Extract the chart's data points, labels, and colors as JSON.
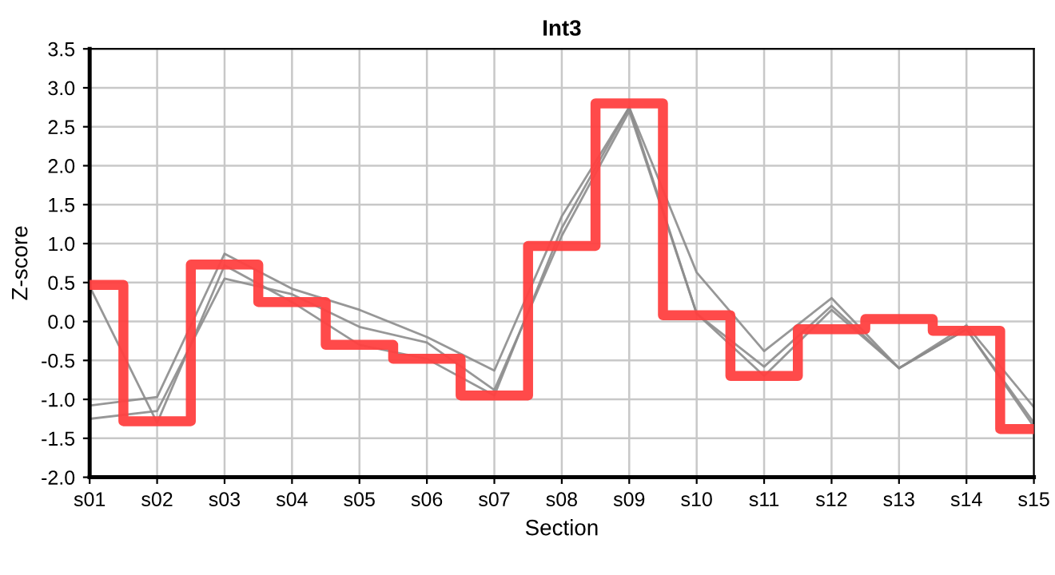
{
  "chart_data": {
    "type": "line",
    "title": "Int3",
    "xlabel": "Section",
    "ylabel": "Z-score",
    "categories": [
      "s01",
      "s02",
      "s03",
      "s04",
      "s05",
      "s06",
      "s07",
      "s08",
      "s09",
      "s10",
      "s11",
      "s12",
      "s13",
      "s14",
      "s15"
    ],
    "series": [
      {
        "color": "#8c8c8c",
        "values": [
          0.45,
          -1.3,
          0.72,
          0.25,
          -0.3,
          -0.48,
          -0.95,
          1.2,
          2.75,
          0.1,
          -0.7,
          0.15,
          -0.6,
          -0.1,
          -1.35
        ]
      },
      {
        "color": "#8c8c8c",
        "values": [
          -1.08,
          -0.97,
          0.87,
          0.42,
          0.15,
          -0.2,
          -0.63,
          1.35,
          2.75,
          0.63,
          -0.38,
          0.3,
          -0.6,
          -0.05,
          -1.1
        ]
      },
      {
        "color": "#8c8c8c",
        "values": [
          -1.25,
          -1.15,
          0.55,
          0.35,
          -0.07,
          -0.27,
          -0.88,
          1.1,
          2.7,
          0.1,
          -0.58,
          0.2,
          -0.6,
          -0.1,
          -1.3
        ]
      },
      {
        "type": "step",
        "color": "#ff4040",
        "values": [
          0.47,
          -1.28,
          0.73,
          0.25,
          -0.3,
          -0.48,
          -0.95,
          0.97,
          2.8,
          0.08,
          -0.7,
          -0.1,
          0.03,
          -0.12,
          -1.38
        ]
      }
    ],
    "ylim": [
      -2.0,
      3.5
    ],
    "yticks": [
      {
        "value": -2.0,
        "label": "-2.0"
      },
      {
        "value": -1.5,
        "label": "-1.5"
      },
      {
        "value": -1.0,
        "label": "-1.0"
      },
      {
        "value": -0.5,
        "label": "-0.5"
      },
      {
        "value": 0.0,
        "label": "0.0"
      },
      {
        "value": 0.5,
        "label": "0.5"
      },
      {
        "value": 1.0,
        "label": "1.0"
      },
      {
        "value": 1.5,
        "label": "1.5"
      },
      {
        "value": 2.0,
        "label": "2.0"
      },
      {
        "value": 2.5,
        "label": "2.5"
      },
      {
        "value": 3.0,
        "label": "3.0"
      },
      {
        "value": 3.5,
        "label": "3.5"
      }
    ],
    "grid": true,
    "legend": false,
    "marker": "none",
    "line_style": "solid"
  }
}
